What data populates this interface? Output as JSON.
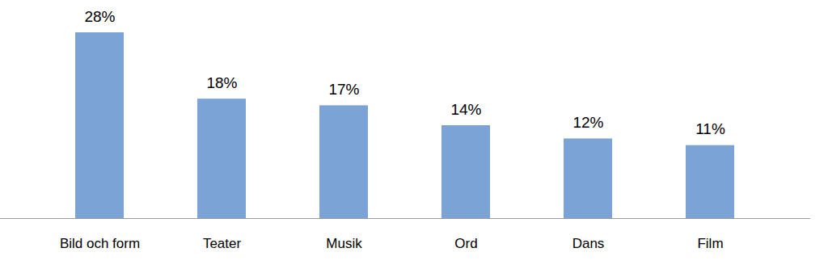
{
  "chart_data": {
    "type": "bar",
    "categories": [
      "Bild och form",
      "Teater",
      "Musik",
      "Ord",
      "Dans",
      "Film"
    ],
    "values": [
      28,
      18,
      17,
      14,
      12,
      11
    ],
    "value_labels": [
      "28%",
      "18%",
      "17%",
      "14%",
      "12%",
      "11%"
    ],
    "color": "#7ba3d6",
    "ylim": [
      0,
      28
    ],
    "data_labels": true,
    "tick_labels": "x",
    "grid": false
  }
}
